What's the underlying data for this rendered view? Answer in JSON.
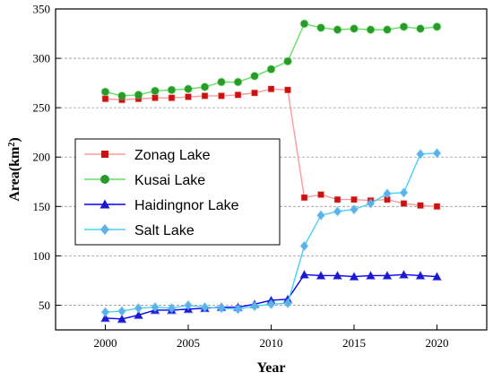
{
  "chart_data": {
    "type": "line",
    "xlabel": "Year",
    "ylabel_main": "Area(km",
    "ylabel_sup": "2",
    "ylabel_close": ")",
    "xlim": [
      1997,
      2023
    ],
    "ylim": [
      25,
      350
    ],
    "x_ticks": [
      2000,
      2005,
      2010,
      2015,
      2020
    ],
    "y_ticks": [
      50,
      100,
      150,
      200,
      250,
      300,
      350
    ],
    "grid": "horizontal dashed",
    "legend_position": "center-left",
    "x": [
      2000,
      2001,
      2002,
      2003,
      2004,
      2005,
      2006,
      2007,
      2008,
      2009,
      2010,
      2011,
      2012,
      2013,
      2014,
      2015,
      2016,
      2017,
      2018,
      2019,
      2020
    ],
    "series": [
      {
        "name": "Zonag Lake",
        "color": "#ff9a9a",
        "marker_color": "#cc1111",
        "marker": "square",
        "values": [
          259,
          258,
          259,
          260,
          260,
          261,
          262,
          262,
          263,
          265,
          269,
          268,
          159,
          162,
          157,
          157,
          156,
          157,
          153,
          151,
          150
        ]
      },
      {
        "name": "Kusai Lake",
        "color": "#5fe05f",
        "marker_color": "#2a9a2a",
        "marker": "circle",
        "values": [
          266,
          262,
          263,
          267,
          268,
          269,
          271,
          276,
          276,
          282,
          289,
          297,
          335,
          331,
          329,
          330,
          329,
          329,
          332,
          330,
          332
        ]
      },
      {
        "name": "Haidingnor Lake",
        "color": "#0000ff",
        "marker_color": "#1a1acc",
        "marker": "triangle",
        "values": [
          37,
          36,
          40,
          45,
          45,
          46,
          47,
          48,
          48,
          51,
          55,
          56,
          81,
          80,
          80,
          79,
          80,
          80,
          81,
          80,
          79
        ]
      },
      {
        "name": "Salt Lake",
        "color": "#46d0f7",
        "marker_color": "#5fb0e8",
        "marker": "diamond",
        "values": [
          43,
          44,
          47,
          48,
          47,
          50,
          48,
          47,
          46,
          49,
          51,
          52,
          110,
          141,
          145,
          147,
          153,
          163,
          164,
          203,
          204
        ]
      }
    ]
  }
}
